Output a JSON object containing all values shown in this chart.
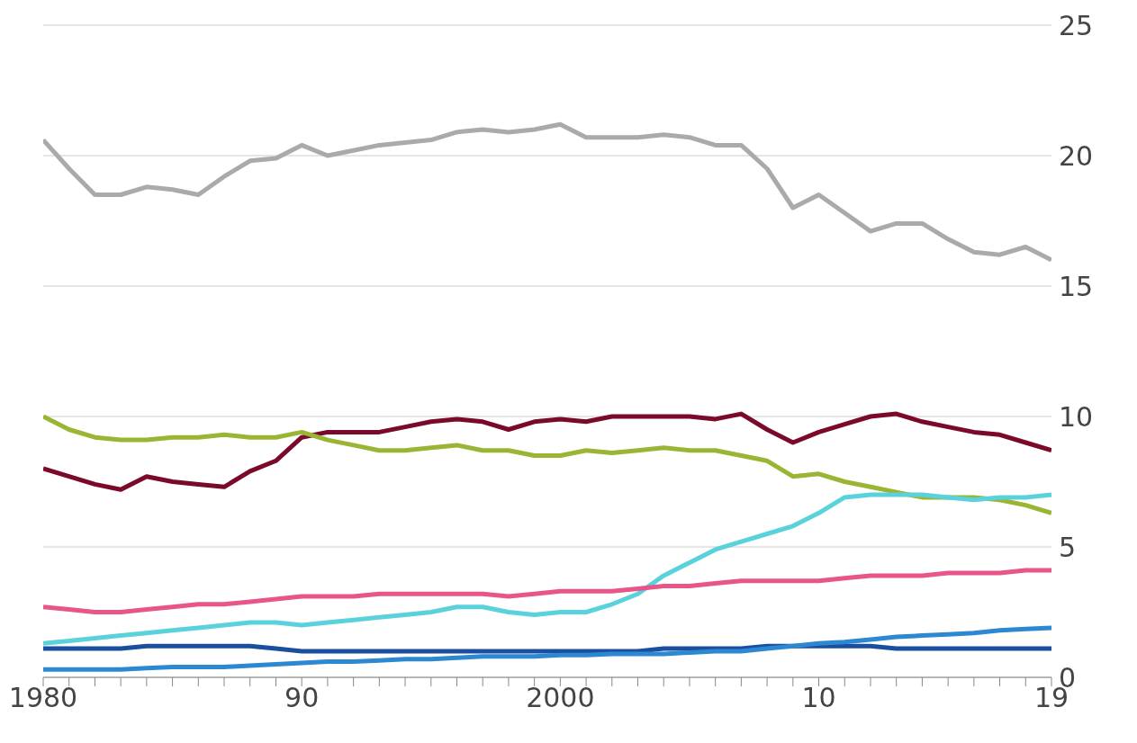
{
  "chart_data": {
    "type": "line",
    "x": [
      1980,
      1981,
      1982,
      1983,
      1984,
      1985,
      1986,
      1987,
      1988,
      1989,
      1990,
      1991,
      1992,
      1993,
      1994,
      1995,
      1996,
      1997,
      1998,
      1999,
      2000,
      2001,
      2002,
      2003,
      2004,
      2005,
      2006,
      2007,
      2008,
      2009,
      2010,
      2011,
      2012,
      2013,
      2014,
      2015,
      2016,
      2017,
      2018,
      2019
    ],
    "series": [
      {
        "color": "#aaaaaa",
        "values": [
          20.6,
          19.5,
          18.5,
          18.5,
          18.8,
          18.7,
          18.5,
          19.2,
          19.8,
          19.9,
          20.4,
          20.0,
          20.2,
          20.4,
          20.5,
          20.6,
          20.9,
          21.0,
          20.9,
          21.0,
          21.2,
          20.7,
          20.7,
          20.7,
          20.8,
          20.7,
          20.4,
          20.4,
          19.5,
          18.0,
          18.5,
          17.8,
          17.1,
          17.4,
          17.4,
          16.8,
          16.3,
          16.2,
          16.5,
          16.0
        ]
      },
      {
        "color": "#7b0a2a",
        "values": [
          8.0,
          7.7,
          7.4,
          7.2,
          7.7,
          7.5,
          7.4,
          7.3,
          7.9,
          8.3,
          9.2,
          9.4,
          9.4,
          9.4,
          9.6,
          9.8,
          9.9,
          9.8,
          9.5,
          9.8,
          9.9,
          9.8,
          10.0,
          10.0,
          10.0,
          10.0,
          9.9,
          10.1,
          9.5,
          9.0,
          9.4,
          9.7,
          10.0,
          10.1,
          9.8,
          9.6,
          9.4,
          9.3,
          9.0,
          8.7
        ]
      },
      {
        "color": "#9ab534",
        "values": [
          10.0,
          9.5,
          9.2,
          9.1,
          9.1,
          9.2,
          9.2,
          9.3,
          9.2,
          9.2,
          9.4,
          9.1,
          8.9,
          8.7,
          8.7,
          8.8,
          8.9,
          8.7,
          8.7,
          8.5,
          8.5,
          8.7,
          8.6,
          8.7,
          8.8,
          8.7,
          8.7,
          8.5,
          8.3,
          7.7,
          7.8,
          7.5,
          7.3,
          7.1,
          6.9,
          6.9,
          6.9,
          6.8,
          6.6,
          6.3
        ]
      },
      {
        "color": "#5ad2dc",
        "values": [
          1.3,
          1.4,
          1.5,
          1.6,
          1.7,
          1.8,
          1.9,
          2.0,
          2.1,
          2.1,
          2.0,
          2.1,
          2.2,
          2.3,
          2.4,
          2.5,
          2.7,
          2.7,
          2.5,
          2.4,
          2.5,
          2.5,
          2.8,
          3.2,
          3.9,
          4.4,
          4.9,
          5.2,
          5.5,
          5.8,
          6.3,
          6.9,
          7.0,
          7.0,
          7.0,
          6.9,
          6.8,
          6.9,
          6.9,
          7.0
        ]
      },
      {
        "color": "#e8558a",
        "values": [
          2.7,
          2.6,
          2.5,
          2.5,
          2.6,
          2.7,
          2.8,
          2.8,
          2.9,
          3.0,
          3.1,
          3.1,
          3.1,
          3.2,
          3.2,
          3.2,
          3.2,
          3.2,
          3.1,
          3.2,
          3.3,
          3.3,
          3.3,
          3.4,
          3.5,
          3.5,
          3.6,
          3.7,
          3.7,
          3.7,
          3.7,
          3.8,
          3.9,
          3.9,
          3.9,
          4.0,
          4.0,
          4.0,
          4.1,
          4.1
        ]
      },
      {
        "color": "#1a4e9e",
        "values": [
          1.1,
          1.1,
          1.1,
          1.1,
          1.2,
          1.2,
          1.2,
          1.2,
          1.2,
          1.1,
          1.0,
          1.0,
          1.0,
          1.0,
          1.0,
          1.0,
          1.0,
          1.0,
          1.0,
          1.0,
          1.0,
          1.0,
          1.0,
          1.0,
          1.1,
          1.1,
          1.1,
          1.1,
          1.2,
          1.2,
          1.2,
          1.2,
          1.2,
          1.1,
          1.1,
          1.1,
          1.1,
          1.1,
          1.1,
          1.1
        ]
      },
      {
        "color": "#2d88d2",
        "values": [
          0.3,
          0.3,
          0.3,
          0.3,
          0.35,
          0.4,
          0.4,
          0.4,
          0.45,
          0.5,
          0.55,
          0.6,
          0.6,
          0.65,
          0.7,
          0.7,
          0.75,
          0.8,
          0.8,
          0.8,
          0.85,
          0.85,
          0.9,
          0.9,
          0.9,
          0.95,
          1.0,
          1.0,
          1.1,
          1.2,
          1.3,
          1.35,
          1.45,
          1.55,
          1.6,
          1.65,
          1.7,
          1.8,
          1.85,
          1.9
        ]
      }
    ],
    "xlim": [
      1980,
      2019
    ],
    "xticks": [
      {
        "value": 1980,
        "label": "1980"
      },
      {
        "value": 1981,
        "label": null
      },
      {
        "value": 1982,
        "label": null
      },
      {
        "value": 1983,
        "label": null
      },
      {
        "value": 1984,
        "label": null
      },
      {
        "value": 1985,
        "label": null
      },
      {
        "value": 1986,
        "label": null
      },
      {
        "value": 1987,
        "label": null
      },
      {
        "value": 1988,
        "label": null
      },
      {
        "value": 1989,
        "label": null
      },
      {
        "value": 1990,
        "label": "90"
      },
      {
        "value": 1991,
        "label": null
      },
      {
        "value": 1992,
        "label": null
      },
      {
        "value": 1993,
        "label": null
      },
      {
        "value": 1994,
        "label": null
      },
      {
        "value": 1995,
        "label": null
      },
      {
        "value": 1996,
        "label": null
      },
      {
        "value": 1997,
        "label": null
      },
      {
        "value": 1998,
        "label": null
      },
      {
        "value": 1999,
        "label": null
      },
      {
        "value": 2000,
        "label": "2000"
      },
      {
        "value": 2001,
        "label": null
      },
      {
        "value": 2002,
        "label": null
      },
      {
        "value": 2003,
        "label": null
      },
      {
        "value": 2004,
        "label": null
      },
      {
        "value": 2005,
        "label": null
      },
      {
        "value": 2006,
        "label": null
      },
      {
        "value": 2007,
        "label": null
      },
      {
        "value": 2008,
        "label": null
      },
      {
        "value": 2009,
        "label": null
      },
      {
        "value": 2010,
        "label": "10"
      },
      {
        "value": 2011,
        "label": null
      },
      {
        "value": 2012,
        "label": null
      },
      {
        "value": 2013,
        "label": null
      },
      {
        "value": 2014,
        "label": null
      },
      {
        "value": 2015,
        "label": null
      },
      {
        "value": 2016,
        "label": null
      },
      {
        "value": 2017,
        "label": null
      },
      {
        "value": 2018,
        "label": null
      },
      {
        "value": 2019,
        "label": "19"
      }
    ],
    "ylim": [
      0,
      25
    ],
    "yticks": [
      0,
      5,
      10,
      15,
      20,
      25
    ],
    "grid": "y",
    "marker": "none",
    "line_style": "solid"
  }
}
